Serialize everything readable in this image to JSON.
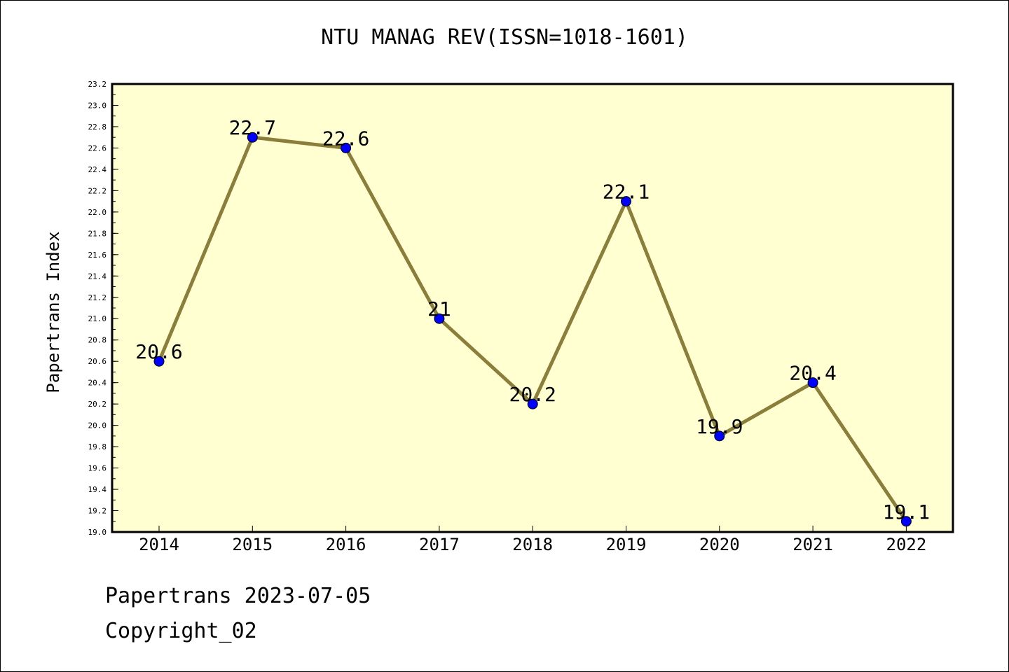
{
  "chart_data": {
    "type": "line",
    "title": "NTU MANAG REV(ISSN=1018-1601)",
    "xlabel": "",
    "ylabel": "Papertrans Index",
    "categories": [
      "2014",
      "2015",
      "2016",
      "2017",
      "2018",
      "2019",
      "2020",
      "2021",
      "2022"
    ],
    "series": [
      {
        "values": [
          20.6,
          22.7,
          22.6,
          21.0,
          20.2,
          22.1,
          19.9,
          20.4,
          19.1
        ],
        "labels": [
          "20.6",
          "22.7",
          "22.6",
          "21",
          "20.2",
          "22.1",
          "19.9",
          "20.4",
          "19.1"
        ]
      }
    ],
    "ylim": [
      19.0,
      23.2
    ],
    "y_major_ticks": [
      "19.0",
      "19.2",
      "19.4",
      "19.6",
      "19.8",
      "20.0",
      "20.2",
      "20.4",
      "20.6",
      "20.8",
      "21.0",
      "21.2",
      "21.4",
      "21.6",
      "21.8",
      "22.0",
      "22.2",
      "22.4",
      "22.6",
      "22.8",
      "23.0",
      "23.2"
    ],
    "y_minor_step": 0.1,
    "grid": false,
    "legend": "none",
    "colors": {
      "plot_background": "#ffffd2",
      "line": "#8b7d3a",
      "marker": "#0000ff",
      "axis": "#000000"
    }
  },
  "footer": {
    "line1": "Papertrans 2023-07-05",
    "line2": "Copyright_02"
  }
}
